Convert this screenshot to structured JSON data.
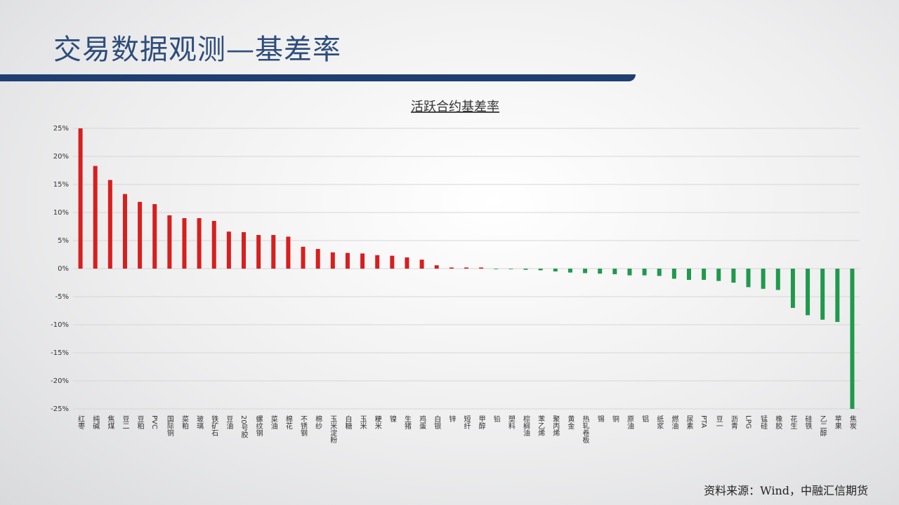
{
  "header": {
    "title": "交易数据观测—基差率"
  },
  "chart_data": {
    "type": "bar",
    "title": "活跃合约基差率",
    "categories": [
      "红枣",
      "纯碱",
      "焦煤",
      "豆二",
      "豆粕",
      "PVC",
      "国际铜",
      "菜粕",
      "玻璃",
      "铁矿石",
      "豆油",
      "20号胶",
      "螺纹钢",
      "菜油",
      "棉花",
      "不锈钢",
      "棉纱",
      "玉米淀粉",
      "白糖",
      "玉米",
      "粳米",
      "镍",
      "生猪",
      "鸡蛋",
      "白银",
      "锌",
      "短纤",
      "甲醇",
      "铅",
      "塑料",
      "棕榈油",
      "苯乙烯",
      "聚丙烯",
      "黄金",
      "热轧卷板",
      "锡",
      "铜",
      "原油",
      "铝",
      "纸浆",
      "燃油",
      "尿素",
      "PTA",
      "豆一",
      "沥青",
      "LPG",
      "锰硅",
      "橡胶",
      "花生",
      "硅铁",
      "乙二醇",
      "苹果",
      "焦炭"
    ],
    "values": [
      25,
      18.3,
      15.8,
      13.3,
      11.9,
      11.5,
      9.5,
      9.0,
      9.0,
      8.5,
      6.6,
      6.5,
      6.0,
      6.0,
      5.7,
      3.9,
      3.5,
      2.9,
      2.8,
      2.7,
      2.4,
      2.3,
      2.0,
      1.6,
      0.6,
      0.2,
      0.2,
      0.2,
      -0.1,
      -0.1,
      -0.2,
      -0.3,
      -0.5,
      -0.7,
      -0.8,
      -0.9,
      -1.0,
      -1.2,
      -1.2,
      -1.3,
      -1.8,
      -2.0,
      -2.0,
      -2.2,
      -2.5,
      -3.3,
      -3.6,
      -3.8,
      -7.0,
      -8.3,
      -9.1,
      -9.5,
      -25
    ],
    "color_positive": "#d81e1e",
    "color_negative": "#1f9a4c",
    "ylim": [
      -25,
      25
    ],
    "yticks": [
      {
        "value": 25,
        "label": "25%"
      },
      {
        "value": 20,
        "label": "20%"
      },
      {
        "value": 15,
        "label": "15%"
      },
      {
        "value": 10,
        "label": "10%"
      },
      {
        "value": 5,
        "label": "5%"
      },
      {
        "value": 0,
        "label": "0%"
      },
      {
        "value": -5,
        "label": "-5%"
      },
      {
        "value": -10,
        "label": "-10%"
      },
      {
        "value": -15,
        "label": "-15%"
      },
      {
        "value": -20,
        "label": "-20%"
      },
      {
        "value": -25,
        "label": "-25%"
      }
    ],
    "grid": true
  },
  "footer": {
    "source": "资料来源：Wind，中融汇信期货"
  }
}
